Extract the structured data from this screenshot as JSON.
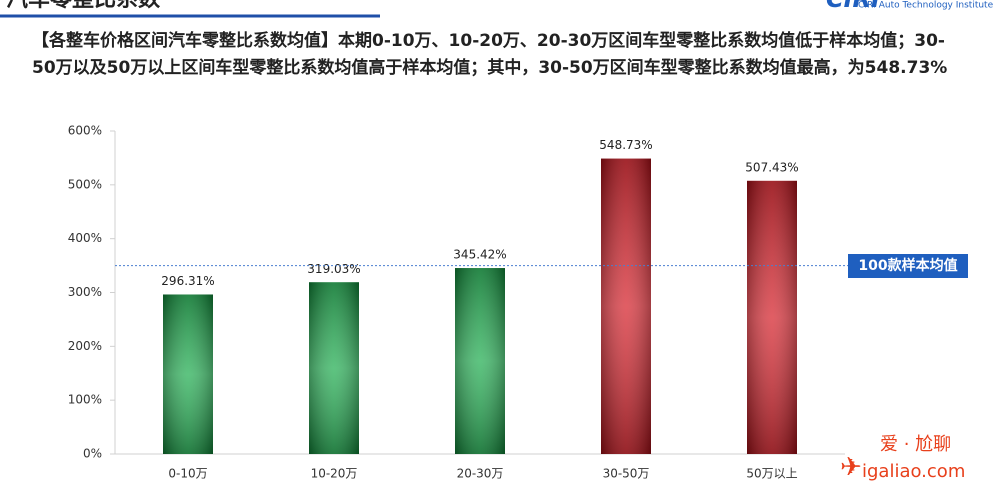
{
  "header": {
    "title": "汽车零整比系数",
    "logo": "CIRI",
    "logo_sub": "CIRI Auto Technology Institute"
  },
  "description": "【各整车价格区间汽车零整比系数均值】本期0-10万、10-20万、20-30万区间车型零整比系数均值低于样本均值；30-50万以及50万以上区间车型零整比系数均值高于样本均值；其中，30-50万区间车型零整比系数均值最高，为548.73%",
  "watermark": {
    "text": "爱 · 尬聊",
    "url": "igaliao.com"
  },
  "chart_data": {
    "type": "bar",
    "categories": [
      "0-10万",
      "10-20万",
      "20-30万",
      "30-50万",
      "50万以上"
    ],
    "values": [
      296.31,
      319.03,
      345.42,
      548.73,
      507.43
    ],
    "value_labels": [
      "296.31%",
      "319.03%",
      "345.42%",
      "548.73%",
      "507.43%"
    ],
    "colors": [
      "#12a845",
      "#12a845",
      "#12a845",
      "#d3121c",
      "#d3121c"
    ],
    "ylim": [
      0,
      600
    ],
    "yticks": [
      {
        "value": 0,
        "label": "0%"
      },
      {
        "value": 100,
        "label": "100%"
      },
      {
        "value": 200,
        "label": "200%"
      },
      {
        "value": 300,
        "label": "300%"
      },
      {
        "value": 400,
        "label": "400%"
      },
      {
        "value": 500,
        "label": "500%"
      },
      {
        "value": 600,
        "label": "600%"
      }
    ],
    "reference_line": {
      "value": 350,
      "label": "100款样本均值",
      "color": "#4a7fd0"
    }
  }
}
